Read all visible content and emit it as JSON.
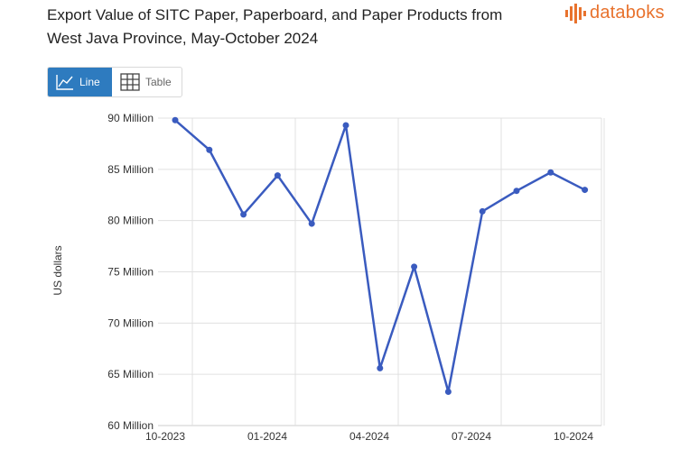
{
  "header": {
    "title": "Export Value of SITC Paper, Paperboard, and Paper Products from West Java Province, May-October 2024",
    "logo_text": "databoks"
  },
  "view_toggle": {
    "line_label": "Line",
    "table_label": "Table",
    "active": "Line"
  },
  "colors": {
    "series": "#3a5bbf",
    "active_button": "#2e7bbf",
    "logo": "#e8722d",
    "grid": "#e0e0e0"
  },
  "chart_data": {
    "type": "line",
    "title": "Export Value of SITC Paper, Paperboard, and Paper Products from West Java Province, May-October 2024",
    "xlabel": "",
    "ylabel": "US dollars",
    "ylim": [
      60000000,
      90000000
    ],
    "grid": true,
    "y_ticks": [
      {
        "value": 60000000,
        "label": "60 Million"
      },
      {
        "value": 65000000,
        "label": "65 Million"
      },
      {
        "value": 70000000,
        "label": "70 Million"
      },
      {
        "value": 75000000,
        "label": "75 Million"
      },
      {
        "value": 80000000,
        "label": "80 Million"
      },
      {
        "value": 85000000,
        "label": "85 Million"
      },
      {
        "value": 90000000,
        "label": "90 Million"
      }
    ],
    "x_ticks": [
      {
        "label": "10-2023",
        "index": 0
      },
      {
        "label": "01-2024",
        "index": 3
      },
      {
        "label": "04-2024",
        "index": 6
      },
      {
        "label": "07-2024",
        "index": 9
      },
      {
        "label": "10-2024",
        "index": 12
      }
    ],
    "x": [
      "10-2023",
      "11-2023",
      "12-2023",
      "01-2024",
      "02-2024",
      "03-2024",
      "04-2024",
      "05-2024",
      "06-2024",
      "07-2024",
      "08-2024",
      "09-2024",
      "10-2024"
    ],
    "series": [
      {
        "values": [
          89800000,
          86900000,
          80600000,
          84400000,
          79700000,
          89300000,
          65600000,
          75500000,
          63300000,
          80900000,
          82900000,
          84700000,
          83000000
        ]
      }
    ]
  }
}
